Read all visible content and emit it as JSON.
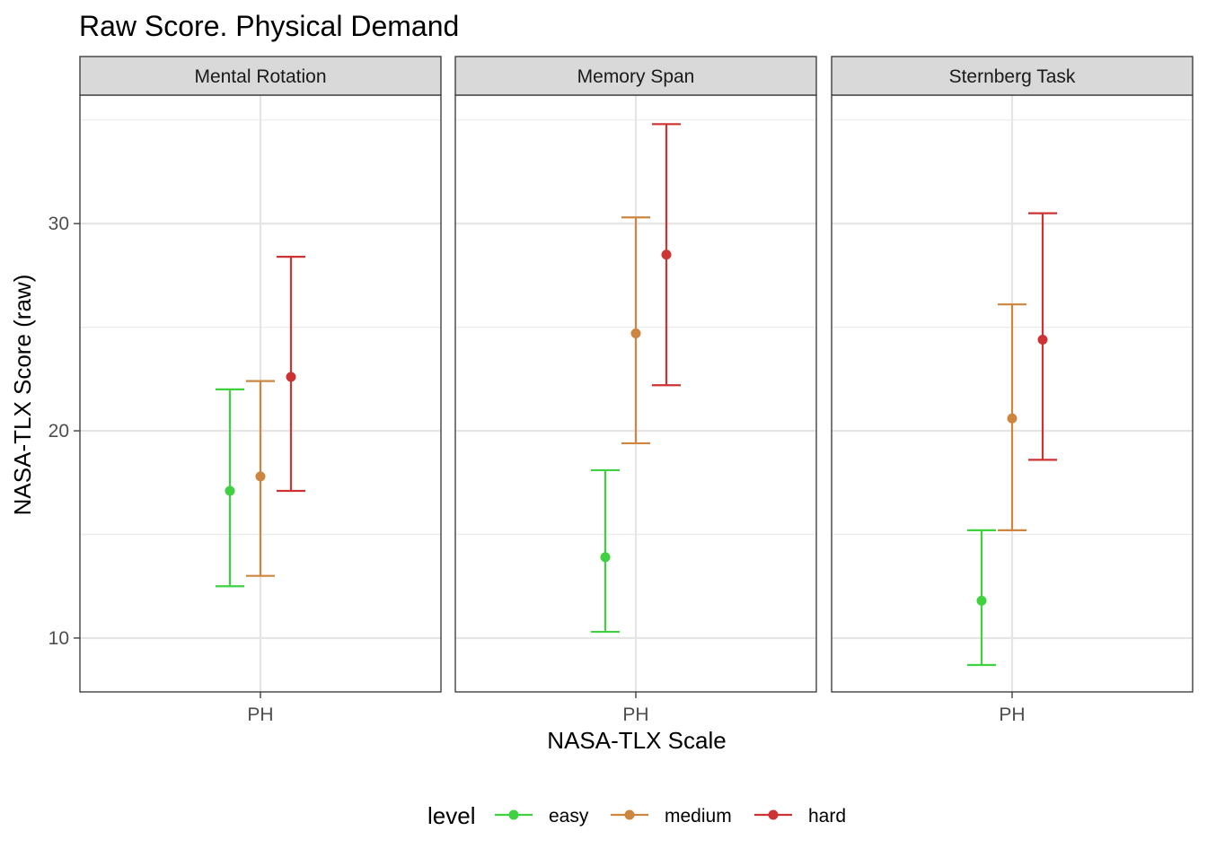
{
  "chart_data": {
    "type": "errorbar",
    "title": "Raw Score. Physical Demand",
    "xlabel": "NASA-TLX Scale",
    "ylabel": "NASA-TLX Score (raw)",
    "ylim": [
      7.4,
      36.2
    ],
    "yticks": [
      10,
      20,
      30
    ],
    "x_category": "PH",
    "legend": {
      "title": "level",
      "position": "bottom",
      "entries": [
        {
          "label": "easy",
          "color": "#3fd13f"
        },
        {
          "label": "medium",
          "color": "#cd853f"
        },
        {
          "label": "hard",
          "color": "#cd3333"
        }
      ]
    },
    "panels": [
      {
        "name": "Mental Rotation",
        "series": [
          {
            "level": "easy",
            "mean": 17.1,
            "lower": 12.5,
            "upper": 22.0
          },
          {
            "level": "medium",
            "mean": 17.8,
            "lower": 13.0,
            "upper": 22.4
          },
          {
            "level": "hard",
            "mean": 22.6,
            "lower": 17.1,
            "upper": 28.4
          }
        ]
      },
      {
        "name": "Memory Span",
        "series": [
          {
            "level": "easy",
            "mean": 13.9,
            "lower": 10.3,
            "upper": 18.1
          },
          {
            "level": "medium",
            "mean": 24.7,
            "lower": 19.4,
            "upper": 30.3
          },
          {
            "level": "hard",
            "mean": 28.5,
            "lower": 22.2,
            "upper": 34.8
          }
        ]
      },
      {
        "name": "Sternberg Task",
        "series": [
          {
            "level": "easy",
            "mean": 11.8,
            "lower": 8.7,
            "upper": 15.2
          },
          {
            "level": "medium",
            "mean": 20.6,
            "lower": 15.2,
            "upper": 26.1
          },
          {
            "level": "hard",
            "mean": 24.4,
            "lower": 18.6,
            "upper": 30.5
          }
        ]
      }
    ],
    "grid": true
  }
}
